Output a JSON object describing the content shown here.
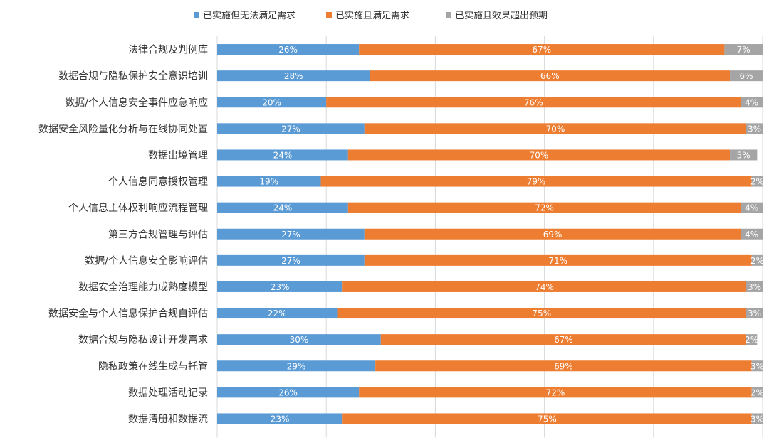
{
  "chart_data": {
    "type": "bar",
    "orientation": "horizontal",
    "stacked": true,
    "percent_stacked": true,
    "xlim": [
      0,
      100
    ],
    "grid": true,
    "legend_position": "top-center",
    "categories": [
      "法律合规及判例库",
      "数据合规与隐私保护安全意识培训",
      "数据/个人信息安全事件应急响应",
      "数据安全风险量化分析与在线协同处置",
      "数据出境管理",
      "个人信息同意授权管理",
      "个人信息主体权利响应流程管理",
      "第三方合规管理与评估",
      "数据/个人信息安全影响评估",
      "数据安全治理能力成熟度模型",
      "数据安全与个人信息保护合规自评估",
      "数据合规与隐私设计开发需求",
      "隐私政策在线生成与托管",
      "数据处理活动记录",
      "数据清册和数据流"
    ],
    "series": [
      {
        "name": "已实施但无法满足需求",
        "color": "#5b9bd5",
        "values": [
          26,
          28,
          20,
          27,
          24,
          19,
          24,
          27,
          27,
          23,
          22,
          30,
          29,
          26,
          23
        ],
        "labels": [
          "26%",
          "28%",
          "20%",
          "27%",
          "24%",
          "19%",
          "24%",
          "27%",
          "27%",
          "23%",
          "22%",
          "30%",
          "29%",
          "26%",
          "23%"
        ]
      },
      {
        "name": "已实施且满足需求",
        "color": "#ed7d31",
        "values": [
          67,
          66,
          76,
          70,
          70,
          79,
          72,
          69,
          71,
          74,
          75,
          67,
          69,
          72,
          75
        ],
        "labels": [
          "67%",
          "66%",
          "76%",
          "70%",
          "70%",
          "79%",
          "72%",
          "69%",
          "71%",
          "74%",
          "75%",
          "67%",
          "69%",
          "72%",
          "75%"
        ]
      },
      {
        "name": "已实施且效果超出预期",
        "color": "#a5a5a5",
        "values": [
          7,
          6,
          4,
          3,
          5,
          2,
          4,
          4,
          2,
          3,
          3,
          2,
          3,
          2,
          3
        ],
        "labels": [
          "7%",
          "6%",
          "4%",
          "3%",
          "5%",
          "2%",
          "4%",
          "4%",
          "2%",
          "3%",
          "3%",
          "2%",
          "3%",
          "2%",
          "3%"
        ]
      }
    ]
  }
}
